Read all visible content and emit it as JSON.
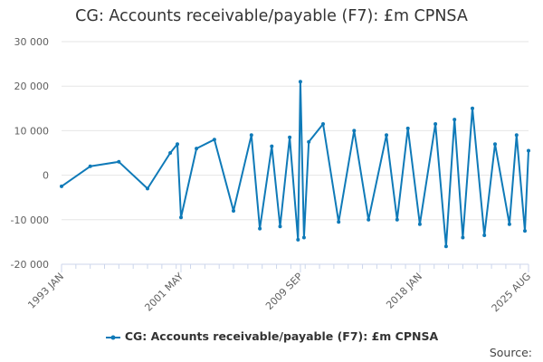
{
  "chart_data": {
    "type": "line",
    "title": "CG: Accounts receivable/payable (F7): £m CPNSA",
    "x_tick_labels": [
      "1993 JAN",
      "2001 MAY",
      "2009 SEP",
      "2018 JAN",
      "2025 AUG"
    ],
    "x_tick_dates": [
      "1993-01",
      "2001-05",
      "2009-09",
      "2018-01",
      "2025-08"
    ],
    "x_range": [
      "1993-01",
      "2025-08"
    ],
    "y_ticks": [
      30000,
      20000,
      10000,
      0,
      -10000,
      -20000
    ],
    "y_tick_labels": [
      "30 000",
      "20 000",
      "10 000",
      "0",
      "-10 000",
      "-20 000"
    ],
    "ylim": [
      -20000,
      30000
    ],
    "grid": "horizontal",
    "legend_position": "bottom",
    "series_color": "#0f7ab8",
    "series": [
      {
        "name": "CG: Accounts receivable/payable (F7): £m CPNSA",
        "x": [
          "1993-01",
          "1995-01",
          "1997-01",
          "1999-01",
          "2000-08",
          "2001-02",
          "2001-05",
          "2002-06",
          "2003-09",
          "2005-01",
          "2006-04",
          "2006-11",
          "2007-09",
          "2008-04",
          "2008-12",
          "2009-07",
          "2009-09",
          "2009-12",
          "2010-04",
          "2011-04",
          "2012-05",
          "2013-06",
          "2014-06",
          "2015-09",
          "2016-06",
          "2017-03",
          "2018-01",
          "2019-02",
          "2019-11",
          "2020-06",
          "2021-01",
          "2021-09",
          "2022-07",
          "2023-04",
          "2024-04",
          "2024-10",
          "2025-05",
          "2025-08"
        ],
        "values": [
          -2500,
          2000,
          3000,
          -3000,
          5000,
          7000,
          -9500,
          6000,
          8000,
          -8000,
          9000,
          -12000,
          6500,
          -11500,
          8500,
          -14500,
          21000,
          -14000,
          7500,
          11500,
          -10500,
          10000,
          -10000,
          9000,
          -10000,
          10500,
          -11000,
          11500,
          -16000,
          12500,
          -14000,
          15000,
          -13500,
          7000,
          -11000,
          9000,
          -12500,
          5500
        ]
      }
    ],
    "source_label": "Source:"
  }
}
